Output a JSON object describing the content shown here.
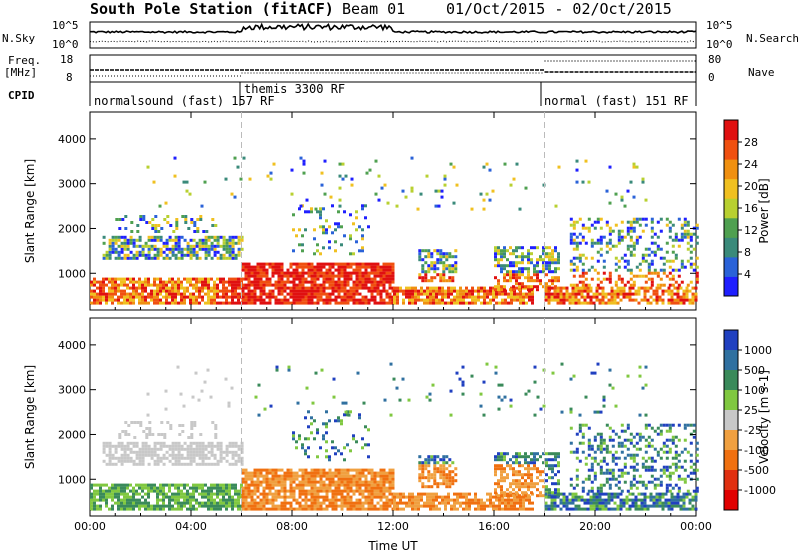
{
  "header": {
    "title": "South Pole Station (fitACF)",
    "beam": "Beam 01",
    "dates": "01/Oct/2015 - 02/Oct/2015"
  },
  "top_panels": {
    "nsky_label": "N.Sky",
    "nsky_ticks": [
      "10^5",
      "10^0"
    ],
    "nsearch_label": "N.Search",
    "nsearch_ticks": [
      "10^5",
      "10^0"
    ],
    "freq_label": "Freq.",
    "freq_unit": "[MHz]",
    "freq_ticks": [
      "18",
      "8"
    ],
    "nave_label": "Nave",
    "nave_ticks": [
      "80",
      "0"
    ],
    "cpid_label": "CPID",
    "cpid_segments": [
      {
        "label": "normalsound (fast) 157 RF",
        "start_hour": 0,
        "end_hour": 6
      },
      {
        "label": "themis 3300 RF",
        "start_hour": 6,
        "end_hour": 18
      },
      {
        "label": "normal (fast) 151 RF",
        "start_hour": 18,
        "end_hour": 24
      }
    ]
  },
  "chart_data": [
    {
      "type": "heatmap",
      "name": "power",
      "ylabel": "Slant Range [km]",
      "xlabel": "",
      "x_ticks": [
        "00:00",
        "04:00",
        "08:00",
        "12:00",
        "16:00",
        "20:00",
        "00:00"
      ],
      "y_ticks": [
        "1000",
        "2000",
        "3000",
        "4000"
      ],
      "ylim": [
        180,
        4600
      ],
      "xlim_hours": [
        0,
        24
      ],
      "colorbar": {
        "label": "Power [dB]",
        "ticks": [
          "4",
          "8",
          "12",
          "16",
          "20",
          "24",
          "28"
        ],
        "colors": [
          "#1f1fff",
          "#2a62d8",
          "#3a8a7a",
          "#4fa050",
          "#b8d030",
          "#f0c020",
          "#f09010",
          "#f05010",
          "#e01010"
        ]
      }
    },
    {
      "type": "heatmap",
      "name": "velocity",
      "ylabel": "Slant Range [km]",
      "xlabel": "Time UT",
      "x_ticks": [
        "00:00",
        "04:00",
        "08:00",
        "12:00",
        "16:00",
        "20:00",
        "00:00"
      ],
      "y_ticks": [
        "1000",
        "2000",
        "3000",
        "4000"
      ],
      "ylim": [
        180,
        4600
      ],
      "xlim_hours": [
        0,
        24
      ],
      "colorbar": {
        "label": "Velocity [m s-1]",
        "ticks": [
          "1000",
          "500",
          "100",
          "25",
          "-25",
          "-100",
          "-500",
          "-1000"
        ],
        "colors": [
          "#2040c0",
          "#3070a0",
          "#3a8a5a",
          "#80c840",
          "#c8c8c8",
          "#f0a040",
          "#f07010",
          "#e03010",
          "#e00000"
        ]
      }
    }
  ]
}
